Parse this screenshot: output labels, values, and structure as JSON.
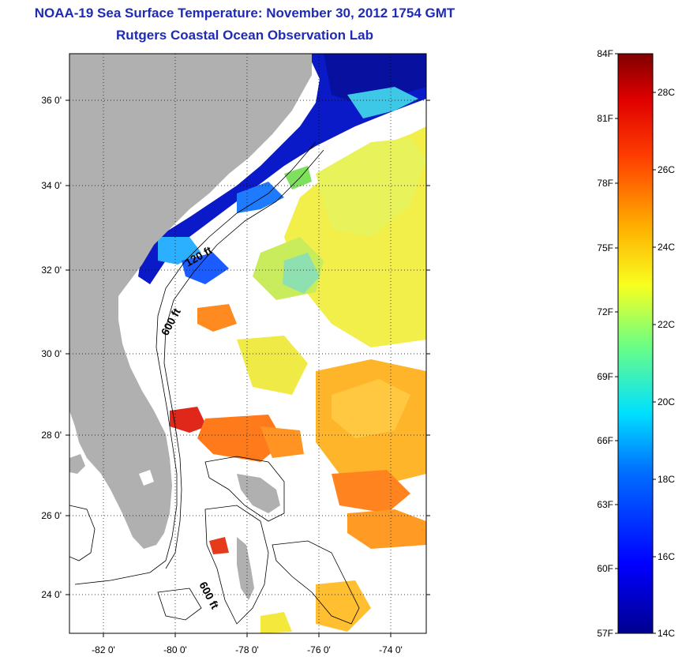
{
  "header": {
    "title": "NOAA-19 Sea Surface Temperature:  November 30, 2012 1754 GMT",
    "subtitle": "Rutgers Coastal Ocean Observation Lab"
  },
  "map": {
    "lat_labels": [
      "36 0'",
      "34 0'",
      "32 0'",
      "30 0'",
      "28 0'",
      "26 0'",
      "24 0'"
    ],
    "lon_labels": [
      "-82 0'",
      "-80 0'",
      "-78 0'",
      "-76 0'",
      "-74 0'"
    ],
    "contour_labels": [
      "120 ft",
      "600 ft",
      "600 ft"
    ],
    "land_color": "#b0b0b0"
  },
  "colorbar": {
    "fahrenheit_labels": [
      "84F",
      "81F",
      "78F",
      "75F",
      "72F",
      "69F",
      "66F",
      "63F",
      "60F",
      "57F"
    ],
    "celsius_labels": [
      "28C",
      "26C",
      "24C",
      "22C",
      "20C",
      "18C",
      "16C",
      "14C"
    ],
    "range_f": [
      57,
      84
    ],
    "range_c": [
      14,
      29
    ]
  }
}
